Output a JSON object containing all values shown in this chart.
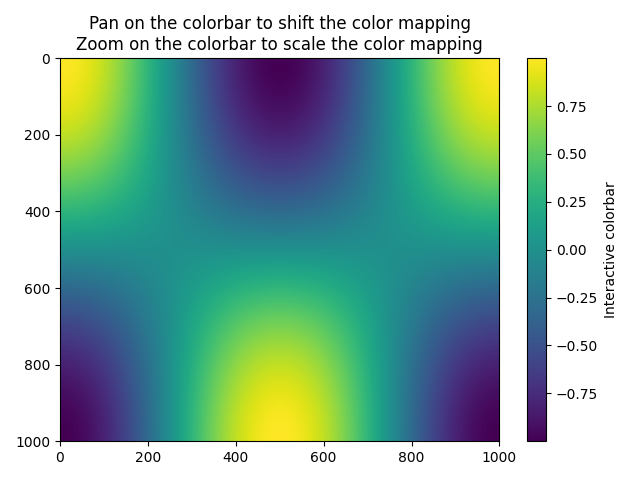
{
  "title": "Pan on the colorbar to shift the color mapping\nZoom on the colorbar to scale the color mapping",
  "colorbar_label": "Interactive colorbar",
  "cmap": "viridis",
  "grid_size": 1000,
  "x_range": [
    0,
    1000
  ],
  "y_range": [
    0,
    1000
  ],
  "vmin": -1.0,
  "vmax": 1.0,
  "colorbar_ticks": [
    0.75,
    0.5,
    0.25,
    0.0,
    -0.25,
    -0.5,
    -0.75
  ],
  "figsize": [
    6.4,
    4.8
  ],
  "dpi": 100
}
